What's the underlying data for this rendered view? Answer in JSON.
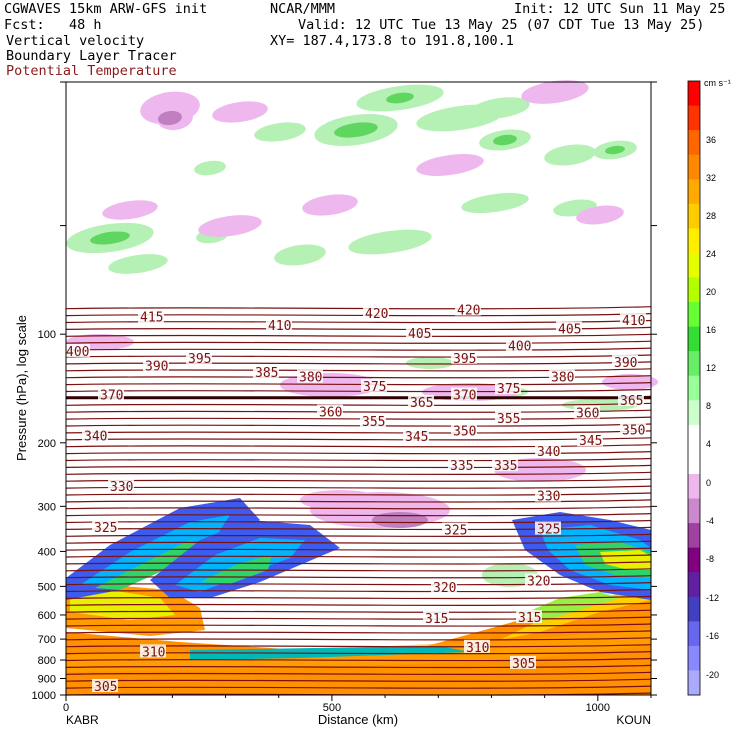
{
  "header": {
    "model": "CGWAVES 15km ARW-GFS init",
    "forecast": "Fcst:   48 h",
    "center": "NCAR/MMM",
    "init": "Init: 12 UTC Sun 11 May 25",
    "valid": "Valid: 12 UTC Tue 13 May 25 (07 CDT Tue 13 May 25)",
    "xy": "XY= 187.4,173.8 to 191.8,100.1",
    "field1": "Vertical velocity",
    "field2": "Boundary Layer Tracer",
    "field3": "Potential Temperature"
  },
  "chart_data": {
    "type": "heatmap",
    "title": "Vertical velocity / Boundary Layer Tracer / Potential Temperature cross section",
    "xlabel": "Distance (km)",
    "ylabel": "Pressure (hPa), log scale",
    "x_range": [
      0,
      1100
    ],
    "y_range": [
      1000,
      20
    ],
    "y_scale": "log",
    "x_ticks": [
      "0",
      "500",
      "1000"
    ],
    "y_ticks": [
      "100",
      "200",
      "300",
      "400",
      "500",
      "600",
      "700",
      "800",
      "900",
      "1000"
    ],
    "endpoint_left": "KABR",
    "endpoint_right": "KOUN",
    "colorbar": {
      "units": "cm s⁻¹",
      "labels": [
        "36",
        "32",
        "28",
        "24",
        "20",
        "16",
        "12",
        "8",
        "4",
        "0",
        "-4",
        "-8",
        "-12",
        "-16",
        "-20"
      ],
      "colors": [
        "#ff0000",
        "#ff3300",
        "#ff6600",
        "#ff8800",
        "#ffaa00",
        "#ffcc00",
        "#ffee00",
        "#e6ff00",
        "#b3ff00",
        "#66ff33",
        "#33dd33",
        "#66ee66",
        "#99ff99",
        "#ccffcc",
        "#ffffff",
        "#ffffff",
        "#eeb8ee",
        "#cc88cc",
        "#a040a0",
        "#800080",
        "#6020a0",
        "#4040c0",
        "#6666ee",
        "#8888ff",
        "#aaaaff"
      ]
    },
    "theta_labels": [
      {
        "value": "415",
        "x": 140,
        "p": 90
      },
      {
        "value": "410",
        "x": 268,
        "p": 95
      },
      {
        "value": "420",
        "x": 365,
        "p": 88
      },
      {
        "value": "420",
        "x": 457,
        "p": 86
      },
      {
        "value": "405",
        "x": 408,
        "p": 100
      },
      {
        "value": "405",
        "x": 558,
        "p": 97
      },
      {
        "value": "410",
        "x": 622,
        "p": 92
      },
      {
        "value": "400",
        "x": 66,
        "p": 112
      },
      {
        "value": "390",
        "x": 145,
        "p": 123
      },
      {
        "value": "395",
        "x": 188,
        "p": 117
      },
      {
        "value": "395",
        "x": 453,
        "p": 117
      },
      {
        "value": "400",
        "x": 508,
        "p": 108
      },
      {
        "value": "390",
        "x": 614,
        "p": 120
      },
      {
        "value": "385",
        "x": 255,
        "p": 128
      },
      {
        "value": "380",
        "x": 299,
        "p": 132
      },
      {
        "value": "375",
        "x": 363,
        "p": 140
      },
      {
        "value": "380",
        "x": 551,
        "p": 132
      },
      {
        "value": "375",
        "x": 497,
        "p": 142
      },
      {
        "value": "370",
        "x": 100,
        "p": 148
      },
      {
        "value": "370",
        "x": 453,
        "p": 148
      },
      {
        "value": "365",
        "x": 410,
        "p": 155
      },
      {
        "value": "365",
        "x": 620,
        "p": 153
      },
      {
        "value": "360",
        "x": 319,
        "p": 165
      },
      {
        "value": "360",
        "x": 576,
        "p": 166
      },
      {
        "value": "355",
        "x": 362,
        "p": 175
      },
      {
        "value": "355",
        "x": 497,
        "p": 172
      },
      {
        "value": "350",
        "x": 453,
        "p": 186
      },
      {
        "value": "350",
        "x": 622,
        "p": 185
      },
      {
        "value": "345",
        "x": 405,
        "p": 193
      },
      {
        "value": "345",
        "x": 579,
        "p": 198
      },
      {
        "value": "340",
        "x": 84,
        "p": 192
      },
      {
        "value": "340",
        "x": 537,
        "p": 212
      },
      {
        "value": "335",
        "x": 450,
        "p": 232
      },
      {
        "value": "335",
        "x": 494,
        "p": 232
      },
      {
        "value": "330",
        "x": 110,
        "p": 265
      },
      {
        "value": "330",
        "x": 537,
        "p": 282
      },
      {
        "value": "325",
        "x": 94,
        "p": 345
      },
      {
        "value": "325",
        "x": 444,
        "p": 350
      },
      {
        "value": "325",
        "x": 537,
        "p": 348
      },
      {
        "value": "320",
        "x": 433,
        "p": 505
      },
      {
        "value": "320",
        "x": 527,
        "p": 485
      },
      {
        "value": "315",
        "x": 425,
        "p": 615
      },
      {
        "value": "315",
        "x": 518,
        "p": 612
      },
      {
        "value": "310",
        "x": 142,
        "p": 762
      },
      {
        "value": "310",
        "x": 466,
        "p": 740
      },
      {
        "value": "305",
        "x": 94,
        "p": 950
      },
      {
        "value": "305",
        "x": 512,
        "p": 820
      }
    ]
  }
}
